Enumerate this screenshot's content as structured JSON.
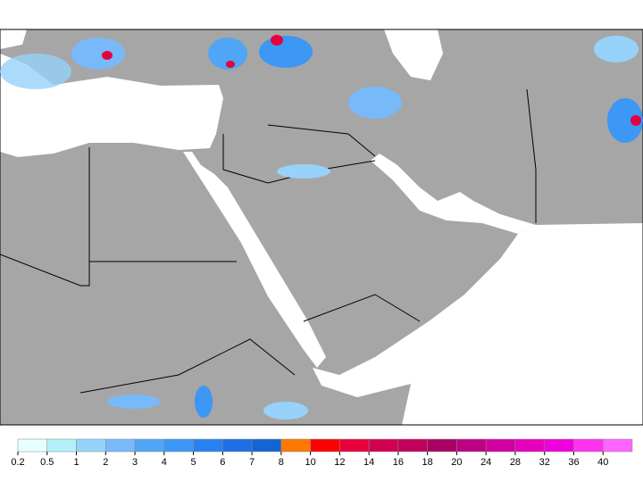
{
  "colorbar": {
    "levels": [
      0.2,
      0.5,
      1,
      2,
      3,
      4,
      5,
      6,
      7,
      8,
      10,
      12,
      14,
      16,
      18,
      20,
      24,
      28,
      32,
      36,
      40
    ],
    "colors": [
      "#e6ffff",
      "#b4f0fa",
      "#96d2fa",
      "#78b9fa",
      "#50a5f5",
      "#3c97f5",
      "#2882f0",
      "#1e6ee6",
      "#1464d2",
      "#ff7800",
      "#ff0000",
      "#e6003c",
      "#d20050",
      "#c0005a",
      "#aa0064",
      "#be0082",
      "#d200a0",
      "#e600be",
      "#f000dc",
      "#ff32f0",
      "#ff64ff"
    ]
  }
}
